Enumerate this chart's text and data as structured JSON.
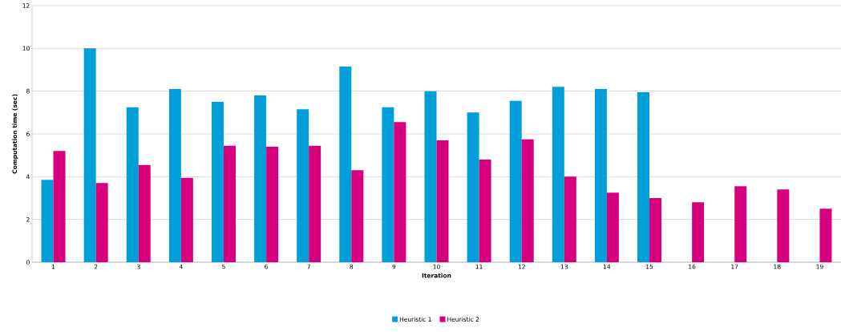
{
  "chart_data": {
    "type": "bar",
    "xlabel": "Iteration",
    "ylabel": "Computation time (sec)",
    "categories": [
      "1",
      "2",
      "3",
      "4",
      "5",
      "6",
      "7",
      "8",
      "9",
      "10",
      "11",
      "12",
      "13",
      "14",
      "15",
      "16",
      "17",
      "18",
      "19"
    ],
    "series": [
      {
        "name": "Heuristic 1",
        "color": "#009fda",
        "values": [
          3.85,
          10.0,
          7.25,
          8.1,
          7.5,
          7.8,
          7.15,
          9.15,
          7.25,
          8.0,
          7.0,
          7.55,
          8.2,
          8.1,
          7.95,
          null,
          null,
          null,
          null
        ]
      },
      {
        "name": "Heuristic 2",
        "color": "#d6007e",
        "values": [
          5.2,
          3.7,
          4.55,
          3.95,
          5.45,
          5.4,
          5.45,
          4.3,
          6.55,
          5.7,
          4.8,
          5.75,
          4.0,
          3.25,
          3.0,
          2.8,
          3.55,
          3.4,
          2.5
        ]
      }
    ],
    "ylim": [
      0,
      12
    ],
    "yticks": [
      0,
      2,
      4,
      6,
      8,
      10,
      12
    ],
    "grid": "y",
    "legend": "bottom"
  }
}
